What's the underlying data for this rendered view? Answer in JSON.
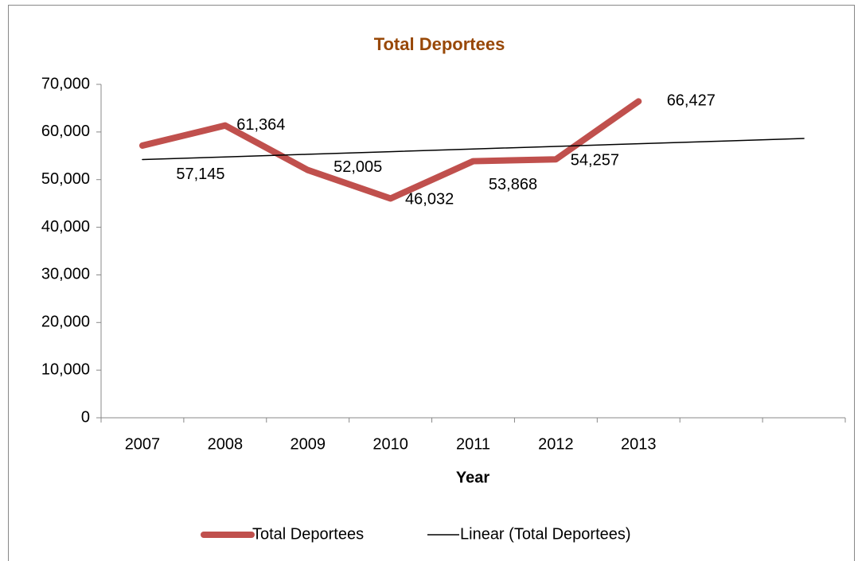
{
  "chart_data": {
    "type": "line",
    "title": "Total Deportees",
    "x_label": "Year",
    "categories": [
      "2007",
      "2008",
      "2009",
      "2010",
      "2011",
      "2012",
      "2013",
      null,
      null
    ],
    "series": [
      {
        "name": "Total Deportees",
        "color": "#c0504d",
        "values": [
          57145,
          61364,
          52005,
          46032,
          53868,
          54257,
          66427,
          null,
          null
        ],
        "value_labels": [
          "57,145",
          "61,364",
          "52,005",
          "46,032",
          "53,868",
          "54,257",
          "66,427",
          null,
          null
        ]
      },
      {
        "name": "Linear (Total Deportees)",
        "color": "#000000",
        "values": [
          54211,
          54765,
          55318,
          55871,
          56425,
          56978,
          57531,
          58085,
          58638
        ]
      }
    ],
    "ylim": [
      0,
      70000
    ],
    "yticks": [
      0,
      {
        "value": 10000,
        "label": "10,000"
      },
      {
        "value": 20000,
        "label": "20,000"
      },
      {
        "value": 30000,
        "label": "30,000"
      },
      {
        "value": 40000,
        "label": "40,000"
      },
      {
        "value": 50000,
        "label": "50,000"
      },
      {
        "value": 60000,
        "label": "60,000"
      },
      {
        "value": 70000,
        "label": "70,000"
      }
    ],
    "legend": "bottom"
  }
}
